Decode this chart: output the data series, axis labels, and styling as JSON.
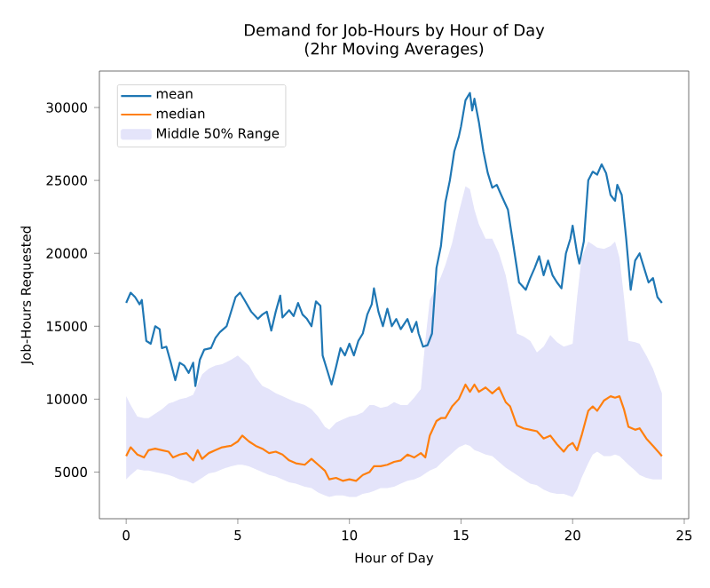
{
  "chart_data": {
    "type": "line",
    "title": "Demand for Job-Hours by Hour of Day",
    "subtitle": "(2hr Moving Averages)",
    "xlabel": "Hour of Day",
    "ylabel": "Job-Hours Requested",
    "xlim": [
      -1.2,
      25.2
    ],
    "ylim": [
      1800,
      32500
    ],
    "xticks": [
      0,
      5,
      10,
      15,
      20,
      25
    ],
    "yticks": [
      5000,
      10000,
      15000,
      20000,
      25000,
      30000
    ],
    "legend": "top left",
    "series": [
      {
        "name": "mean",
        "color": "#1f77b4",
        "x": [
          0,
          0.2,
          0.4,
          0.6,
          0.7,
          0.9,
          1.1,
          1.3,
          1.5,
          1.6,
          1.8,
          2.0,
          2.2,
          2.4,
          2.6,
          2.8,
          3.0,
          3.1,
          3.3,
          3.5,
          3.8,
          4.0,
          4.2,
          4.5,
          4.7,
          4.9,
          5.1,
          5.3,
          5.6,
          5.9,
          6.1,
          6.3,
          6.5,
          6.7,
          6.9,
          7.0,
          7.3,
          7.5,
          7.7,
          7.9,
          8.1,
          8.3,
          8.5,
          8.7,
          8.8,
          9.0,
          9.2,
          9.4,
          9.6,
          9.8,
          10.0,
          10.2,
          10.4,
          10.6,
          10.8,
          11.0,
          11.1,
          11.3,
          11.5,
          11.7,
          11.9,
          12.1,
          12.3,
          12.6,
          12.8,
          13.0,
          13.1,
          13.3,
          13.5,
          13.7,
          13.9,
          14.1,
          14.3,
          14.5,
          14.7,
          14.9,
          15.0,
          15.2,
          15.4,
          15.5,
          15.6,
          15.8,
          16.0,
          16.2,
          16.4,
          16.6,
          16.8,
          17.1,
          17.3,
          17.6,
          17.9,
          18.1,
          18.3,
          18.5,
          18.7,
          18.9,
          19.1,
          19.3,
          19.5,
          19.7,
          19.9,
          20.0,
          20.2,
          20.3,
          20.5,
          20.7,
          20.9,
          21.1,
          21.3,
          21.5,
          21.7,
          21.9,
          22.0,
          22.2,
          22.4,
          22.6,
          22.8,
          23.0,
          23.2,
          23.4,
          23.6,
          23.8,
          24.0
        ],
        "values": [
          16600,
          17300,
          17000,
          16500,
          16800,
          14000,
          13800,
          15000,
          14800,
          13500,
          13600,
          12500,
          11300,
          12500,
          12300,
          11800,
          12500,
          10900,
          12700,
          13400,
          13500,
          14200,
          14600,
          15000,
          16000,
          17000,
          17300,
          16800,
          16000,
          15500,
          15800,
          16000,
          14700,
          16000,
          17100,
          15600,
          16100,
          15700,
          16600,
          15800,
          15500,
          15000,
          16700,
          16400,
          13000,
          12000,
          11000,
          12200,
          13500,
          13000,
          13800,
          13000,
          14000,
          14500,
          15800,
          16500,
          17600,
          16000,
          15000,
          16200,
          15000,
          15500,
          14800,
          15500,
          14600,
          15300,
          14500,
          13600,
          13700,
          14500,
          19000,
          20500,
          23500,
          25000,
          27000,
          28000,
          28700,
          30500,
          31000,
          29800,
          30600,
          29000,
          27000,
          25500,
          24500,
          24700,
          24000,
          23000,
          21000,
          18000,
          17500,
          18300,
          19000,
          19800,
          18500,
          19500,
          18500,
          18000,
          17600,
          20000,
          21000,
          21900,
          20000,
          19300,
          20800,
          25000,
          25600,
          25400,
          26100,
          25500,
          24000,
          23600,
          24700,
          24000,
          21000,
          17500,
          19500,
          20000,
          19000,
          18000,
          18300,
          17000,
          16600
        ]
      },
      {
        "name": "median",
        "color": "#ff7f0e",
        "x": [
          0,
          0.2,
          0.5,
          0.8,
          1.0,
          1.3,
          1.6,
          1.9,
          2.1,
          2.4,
          2.7,
          3.0,
          3.2,
          3.4,
          3.7,
          4.0,
          4.3,
          4.7,
          5.0,
          5.2,
          5.5,
          5.8,
          6.1,
          6.4,
          6.7,
          7.0,
          7.3,
          7.6,
          8.0,
          8.3,
          8.6,
          8.9,
          9.1,
          9.4,
          9.7,
          10.0,
          10.3,
          10.6,
          10.9,
          11.1,
          11.4,
          11.7,
          12.0,
          12.3,
          12.6,
          12.9,
          13.2,
          13.4,
          13.6,
          13.9,
          14.1,
          14.3,
          14.6,
          14.9,
          15.2,
          15.4,
          15.6,
          15.8,
          16.1,
          16.4,
          16.7,
          17.0,
          17.2,
          17.5,
          17.8,
          18.1,
          18.4,
          18.7,
          19.0,
          19.3,
          19.6,
          19.8,
          20.0,
          20.2,
          20.4,
          20.7,
          20.9,
          21.1,
          21.4,
          21.7,
          21.9,
          22.1,
          22.3,
          22.5,
          22.8,
          23.0,
          23.3,
          23.6,
          24.0
        ],
        "values": [
          6100,
          6700,
          6200,
          6000,
          6500,
          6600,
          6500,
          6400,
          6000,
          6200,
          6300,
          5800,
          6500,
          5900,
          6300,
          6500,
          6700,
          6800,
          7100,
          7500,
          7100,
          6800,
          6600,
          6300,
          6400,
          6200,
          5800,
          5600,
          5500,
          5900,
          5500,
          5100,
          4500,
          4600,
          4400,
          4500,
          4400,
          4800,
          5000,
          5400,
          5400,
          5500,
          5700,
          5800,
          6200,
          6000,
          6300,
          6000,
          7500,
          8500,
          8700,
          8700,
          9500,
          10000,
          11000,
          10500,
          11000,
          10500,
          10800,
          10400,
          10800,
          9800,
          9500,
          8200,
          8000,
          7900,
          7800,
          7300,
          7500,
          6900,
          6400,
          6800,
          7000,
          6500,
          7500,
          9200,
          9500,
          9200,
          9900,
          10200,
          10100,
          10200,
          9300,
          8100,
          7900,
          8000,
          7300,
          6800,
          6100
        ],
        "upper": [
          10200,
          9600,
          8800,
          8700,
          8700,
          9000,
          9300,
          9700,
          9800,
          10000,
          10100,
          10300,
          11000,
          11700,
          12100,
          12300,
          12400,
          12700,
          13000,
          12700,
          12300,
          11500,
          10900,
          10700,
          10400,
          10200,
          10000,
          9800,
          9600,
          9300,
          8800,
          8100,
          7900,
          8400,
          8600,
          8800,
          8900,
          9100,
          9600,
          9600,
          9400,
          9500,
          9800,
          9600,
          9600,
          10100,
          10700,
          14000,
          16800,
          17700,
          18400,
          19200,
          20700,
          22800,
          24600,
          24400,
          23000,
          22000,
          21000,
          21000,
          20000,
          18500,
          17000,
          14500,
          14300,
          14000,
          13200,
          13600,
          14400,
          13900,
          13600,
          13700,
          13800,
          17000,
          19700,
          20800,
          20600,
          20400,
          20300,
          20500,
          20800,
          19700,
          17000,
          14000,
          13900,
          13800,
          13000,
          12100,
          10400
        ],
        "lower": [
          4500,
          4800,
          5200,
          5100,
          5100,
          5000,
          4900,
          4800,
          4700,
          4500,
          4400,
          4200,
          4400,
          4600,
          4900,
          5000,
          5200,
          5400,
          5500,
          5500,
          5400,
          5200,
          5000,
          4800,
          4700,
          4500,
          4300,
          4200,
          4000,
          3900,
          3600,
          3400,
          3300,
          3400,
          3400,
          3300,
          3300,
          3500,
          3600,
          3700,
          3900,
          3900,
          4000,
          4200,
          4400,
          4500,
          4700,
          4900,
          5100,
          5300,
          5600,
          5900,
          6300,
          6700,
          6900,
          6800,
          6500,
          6400,
          6200,
          6100,
          5700,
          5300,
          5100,
          4800,
          4500,
          4200,
          4100,
          3800,
          3600,
          3500,
          3500,
          3400,
          3300,
          3800,
          4600,
          5600,
          6200,
          6400,
          6100,
          6100,
          6200,
          6100,
          5800,
          5500,
          5100,
          4800,
          4600,
          4500,
          4500
        ]
      },
      {
        "name": "Middle 50% Range",
        "type": "area",
        "color": "#e4e4fa"
      }
    ]
  }
}
